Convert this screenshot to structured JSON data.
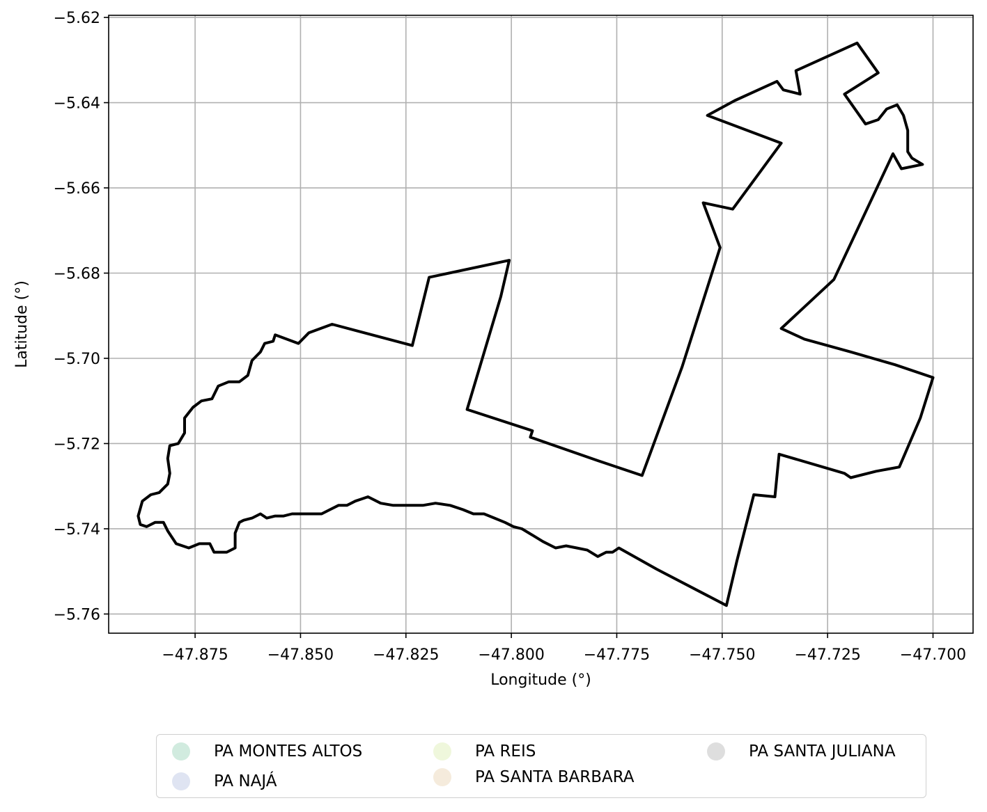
{
  "chart_data": {
    "type": "map",
    "xlabel": "Longitude (°)",
    "ylabel": "Latitude (°)",
    "xlim": [
      -47.8955,
      -47.6905
    ],
    "ylim": [
      -5.7645,
      -5.6195
    ],
    "grid": true,
    "xticks": [
      -47.875,
      -47.85,
      -47.825,
      -47.8,
      -47.775,
      -47.75,
      -47.725,
      -47.7
    ],
    "xtick_labels": [
      "−47.875",
      "−47.850",
      "−47.825",
      "−47.800",
      "−47.775",
      "−47.750",
      "−47.725",
      "−47.700"
    ],
    "yticks": [
      -5.62,
      -5.64,
      -5.66,
      -5.68,
      -5.7,
      -5.72,
      -5.74,
      -5.76
    ],
    "ytick_labels": [
      "−5.62",
      "−5.64",
      "−5.66",
      "−5.68",
      "−5.70",
      "−5.72",
      "−5.74",
      "−5.76"
    ],
    "outline_color": "#000000",
    "outline": [
      [
        -47.718,
        -5.626
      ],
      [
        -47.713,
        -5.633
      ],
      [
        -47.721,
        -5.638
      ],
      [
        -47.716,
        -5.645
      ],
      [
        -47.713,
        -5.644
      ],
      [
        -47.711,
        -5.6415
      ],
      [
        -47.7085,
        -5.6405
      ],
      [
        -47.707,
        -5.643
      ],
      [
        -47.706,
        -5.6465
      ],
      [
        -47.706,
        -5.6515
      ],
      [
        -47.705,
        -5.653
      ],
      [
        -47.7025,
        -5.6545
      ],
      [
        -47.7075,
        -5.6555
      ],
      [
        -47.7095,
        -5.652
      ],
      [
        -47.7235,
        -5.6815
      ],
      [
        -47.736,
        -5.693
      ],
      [
        -47.7305,
        -5.6955
      ],
      [
        -47.7195,
        -5.6985
      ],
      [
        -47.709,
        -5.7015
      ],
      [
        -47.7,
        -5.7045
      ],
      [
        -47.703,
        -5.714
      ],
      [
        -47.708,
        -5.7255
      ],
      [
        -47.7135,
        -5.7265
      ],
      [
        -47.7195,
        -5.728
      ],
      [
        -47.721,
        -5.727
      ],
      [
        -47.7365,
        -5.7225
      ],
      [
        -47.7375,
        -5.7325
      ],
      [
        -47.7425,
        -5.732
      ],
      [
        -47.7465,
        -5.7475
      ],
      [
        -47.749,
        -5.758
      ],
      [
        -47.7655,
        -5.7495
      ],
      [
        -47.7745,
        -5.7445
      ],
      [
        -47.776,
        -5.7455
      ],
      [
        -47.7775,
        -5.7455
      ],
      [
        -47.7795,
        -5.7465
      ],
      [
        -47.782,
        -5.745
      ],
      [
        -47.7845,
        -5.7445
      ],
      [
        -47.787,
        -5.744
      ],
      [
        -47.7895,
        -5.7445
      ],
      [
        -47.7925,
        -5.743
      ],
      [
        -47.795,
        -5.7415
      ],
      [
        -47.7975,
        -5.74
      ],
      [
        -47.7995,
        -5.7395
      ],
      [
        -47.8015,
        -5.7385
      ],
      [
        -47.804,
        -5.7375
      ],
      [
        -47.8065,
        -5.7365
      ],
      [
        -47.809,
        -5.7365
      ],
      [
        -47.8115,
        -5.7355
      ],
      [
        -47.8145,
        -5.7345
      ],
      [
        -47.818,
        -5.734
      ],
      [
        -47.821,
        -5.7345
      ],
      [
        -47.8245,
        -5.7345
      ],
      [
        -47.828,
        -5.7345
      ],
      [
        -47.831,
        -5.734
      ],
      [
        -47.834,
        -5.7325
      ],
      [
        -47.8355,
        -5.733
      ],
      [
        -47.837,
        -5.7335
      ],
      [
        -47.839,
        -5.7345
      ],
      [
        -47.841,
        -5.7345
      ],
      [
        -47.843,
        -5.7355
      ],
      [
        -47.845,
        -5.7365
      ],
      [
        -47.847,
        -5.7365
      ],
      [
        -47.849,
        -5.7365
      ],
      [
        -47.852,
        -5.7365
      ],
      [
        -47.854,
        -5.737
      ],
      [
        -47.856,
        -5.737
      ],
      [
        -47.858,
        -5.7375
      ],
      [
        -47.8595,
        -5.7365
      ],
      [
        -47.8615,
        -5.7375
      ],
      [
        -47.8635,
        -5.738
      ],
      [
        -47.8645,
        -5.7385
      ],
      [
        -47.8655,
        -5.741
      ],
      [
        -47.8655,
        -5.7445
      ],
      [
        -47.8675,
        -5.7455
      ],
      [
        -47.8705,
        -5.7455
      ],
      [
        -47.8715,
        -5.7435
      ],
      [
        -47.874,
        -5.7435
      ],
      [
        -47.8765,
        -5.7445
      ],
      [
        -47.8795,
        -5.7435
      ],
      [
        -47.8815,
        -5.7405
      ],
      [
        -47.8825,
        -5.7385
      ],
      [
        -47.8845,
        -5.7385
      ],
      [
        -47.8865,
        -5.7395
      ],
      [
        -47.888,
        -5.739
      ],
      [
        -47.8885,
        -5.737
      ],
      [
        -47.8875,
        -5.7335
      ],
      [
        -47.8855,
        -5.732
      ],
      [
        -47.8835,
        -5.7315
      ],
      [
        -47.8815,
        -5.7295
      ],
      [
        -47.881,
        -5.727
      ],
      [
        -47.8815,
        -5.7235
      ],
      [
        -47.881,
        -5.7205
      ],
      [
        -47.879,
        -5.72
      ],
      [
        -47.8775,
        -5.7175
      ],
      [
        -47.8775,
        -5.714
      ],
      [
        -47.8755,
        -5.7115
      ],
      [
        -47.8735,
        -5.71
      ],
      [
        -47.871,
        -5.7095
      ],
      [
        -47.8695,
        -5.7065
      ],
      [
        -47.867,
        -5.7055
      ],
      [
        -47.8645,
        -5.7055
      ],
      [
        -47.8625,
        -5.704
      ],
      [
        -47.8615,
        -5.7005
      ],
      [
        -47.8595,
        -5.6985
      ],
      [
        -47.8585,
        -5.6965
      ],
      [
        -47.8565,
        -5.696
      ],
      [
        -47.856,
        -5.6945
      ],
      [
        -47.8505,
        -5.6965
      ],
      [
        -47.848,
        -5.694
      ],
      [
        -47.8425,
        -5.692
      ],
      [
        -47.8235,
        -5.697
      ],
      [
        -47.8195,
        -5.681
      ],
      [
        -47.8005,
        -5.677
      ],
      [
        -47.8025,
        -5.6855
      ],
      [
        -47.8105,
        -5.712
      ],
      [
        -47.795,
        -5.717
      ],
      [
        -47.7955,
        -5.7185
      ],
      [
        -47.7795,
        -5.724
      ],
      [
        -47.769,
        -5.7275
      ],
      [
        -47.7595,
        -5.702
      ],
      [
        -47.7505,
        -5.674
      ],
      [
        -47.7545,
        -5.6635
      ],
      [
        -47.7475,
        -5.665
      ],
      [
        -47.736,
        -5.6495
      ],
      [
        -47.7535,
        -5.643
      ],
      [
        -47.747,
        -5.6395
      ],
      [
        -47.737,
        -5.635
      ],
      [
        -47.7355,
        -5.637
      ],
      [
        -47.7315,
        -5.638
      ],
      [
        -47.7325,
        -5.6325
      ],
      [
        -47.718,
        -5.626
      ]
    ]
  },
  "legend": {
    "items": [
      {
        "label": "PA MONTES ALTOS",
        "color": "#d1ebdf"
      },
      {
        "label": "PA NAJÁ",
        "color": "#dfe4f2"
      },
      {
        "label": "PA REIS",
        "color": "#eff7dc"
      },
      {
        "label": "PA SANTA BARBARA",
        "color": "#f5ebdc"
      },
      {
        "label": "PA SANTA JULIANA",
        "color": "#dedede"
      }
    ]
  }
}
